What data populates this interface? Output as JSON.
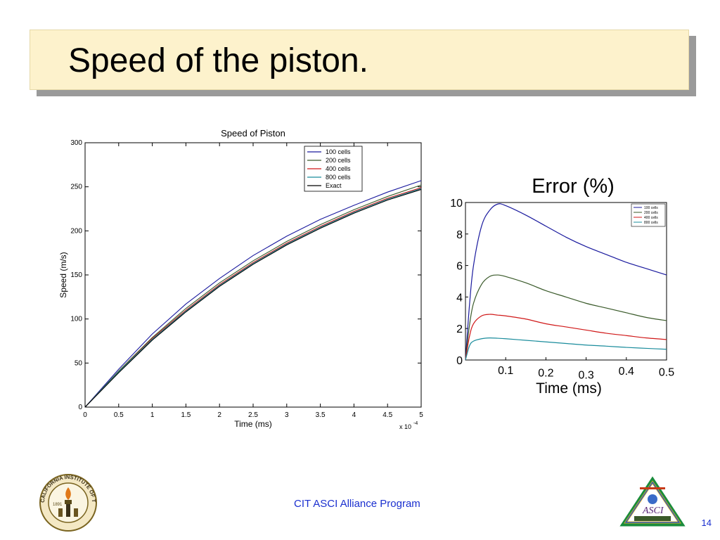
{
  "slide": {
    "title": "Speed of the piston.",
    "footer": "CIT ASCI Alliance Program",
    "page_number": "14",
    "logo_left_text": "CALIFORNIA INSTITUTE OF TECHNOLOGY",
    "logo_left_year": "1891",
    "logo_right_text": "ASCI"
  },
  "chart_data": [
    {
      "type": "line",
      "title": "Speed of Piston",
      "xlabel": "Time (ms)",
      "ylabel": "Speed (m/s)",
      "x_multiplier_label": "x 10",
      "x_multiplier_exp": "-4",
      "xlim": [
        0,
        5
      ],
      "ylim": [
        0,
        300
      ],
      "x_ticks": [
        "0",
        "0.5",
        "1",
        "1.5",
        "2",
        "2.5",
        "3",
        "3.5",
        "4",
        "4.5",
        "5"
      ],
      "y_ticks": [
        "0",
        "50",
        "100",
        "150",
        "200",
        "250",
        "300"
      ],
      "legend_position": "top-right",
      "x": [
        0,
        0.5,
        1,
        1.5,
        2,
        2.5,
        3,
        3.5,
        4,
        4.5,
        5
      ],
      "series": [
        {
          "name": "100 cells",
          "color": "#1a1a9e",
          "values": [
            0,
            43,
            83,
            117,
            146,
            172,
            194,
            213,
            229,
            244,
            257
          ]
        },
        {
          "name": "200 cells",
          "color": "#3a5a2a",
          "values": [
            0,
            41,
            79,
            112,
            141,
            166,
            188,
            207,
            224,
            239,
            252
          ]
        },
        {
          "name": "400 cells",
          "color": "#d01818",
          "values": [
            0,
            40,
            78,
            110,
            139,
            164,
            186,
            205,
            222,
            237,
            249
          ]
        },
        {
          "name": "800 cells",
          "color": "#1a8c9c",
          "values": [
            0,
            40,
            77,
            109,
            138,
            163,
            185,
            204,
            221,
            236,
            248
          ]
        },
        {
          "name": "Exact",
          "color": "#000000",
          "values": [
            0,
            39,
            76,
            108,
            137,
            162,
            184,
            203,
            220,
            235,
            247
          ]
        }
      ]
    },
    {
      "type": "line",
      "title": "Error (%)",
      "xlabel": "Time (ms)",
      "ylabel": "",
      "xlim": [
        0,
        0.5
      ],
      "ylim": [
        0,
        10
      ],
      "x_ticks": [
        "0.1",
        "0.2",
        "0.3",
        "0.4",
        "0.5"
      ],
      "y_ticks": [
        "0",
        "2",
        "4",
        "6",
        "8",
        "10"
      ],
      "legend_position": "top-right",
      "x": [
        0,
        0.01,
        0.02,
        0.04,
        0.06,
        0.08,
        0.1,
        0.15,
        0.2,
        0.25,
        0.3,
        0.35,
        0.4,
        0.45,
        0.5
      ],
      "series": [
        {
          "name": "100 cells",
          "color": "#1a1a9e",
          "values": [
            0,
            3.5,
            6.0,
            8.5,
            9.5,
            9.9,
            9.8,
            9.2,
            8.5,
            7.8,
            7.2,
            6.7,
            6.2,
            5.8,
            5.4
          ]
        },
        {
          "name": "200 cells",
          "color": "#3a5a2a",
          "values": [
            0,
            2.2,
            3.6,
            4.8,
            5.3,
            5.4,
            5.3,
            4.9,
            4.4,
            4.0,
            3.6,
            3.3,
            3.0,
            2.7,
            2.5
          ]
        },
        {
          "name": "400 cells",
          "color": "#d01818",
          "values": [
            0,
            1.5,
            2.3,
            2.8,
            2.9,
            2.85,
            2.8,
            2.6,
            2.3,
            2.1,
            1.9,
            1.7,
            1.55,
            1.4,
            1.3
          ]
        },
        {
          "name": "800 cells",
          "color": "#1a8c9c",
          "values": [
            0,
            0.9,
            1.2,
            1.35,
            1.4,
            1.38,
            1.35,
            1.25,
            1.15,
            1.05,
            0.95,
            0.88,
            0.8,
            0.74,
            0.68
          ]
        }
      ]
    }
  ]
}
